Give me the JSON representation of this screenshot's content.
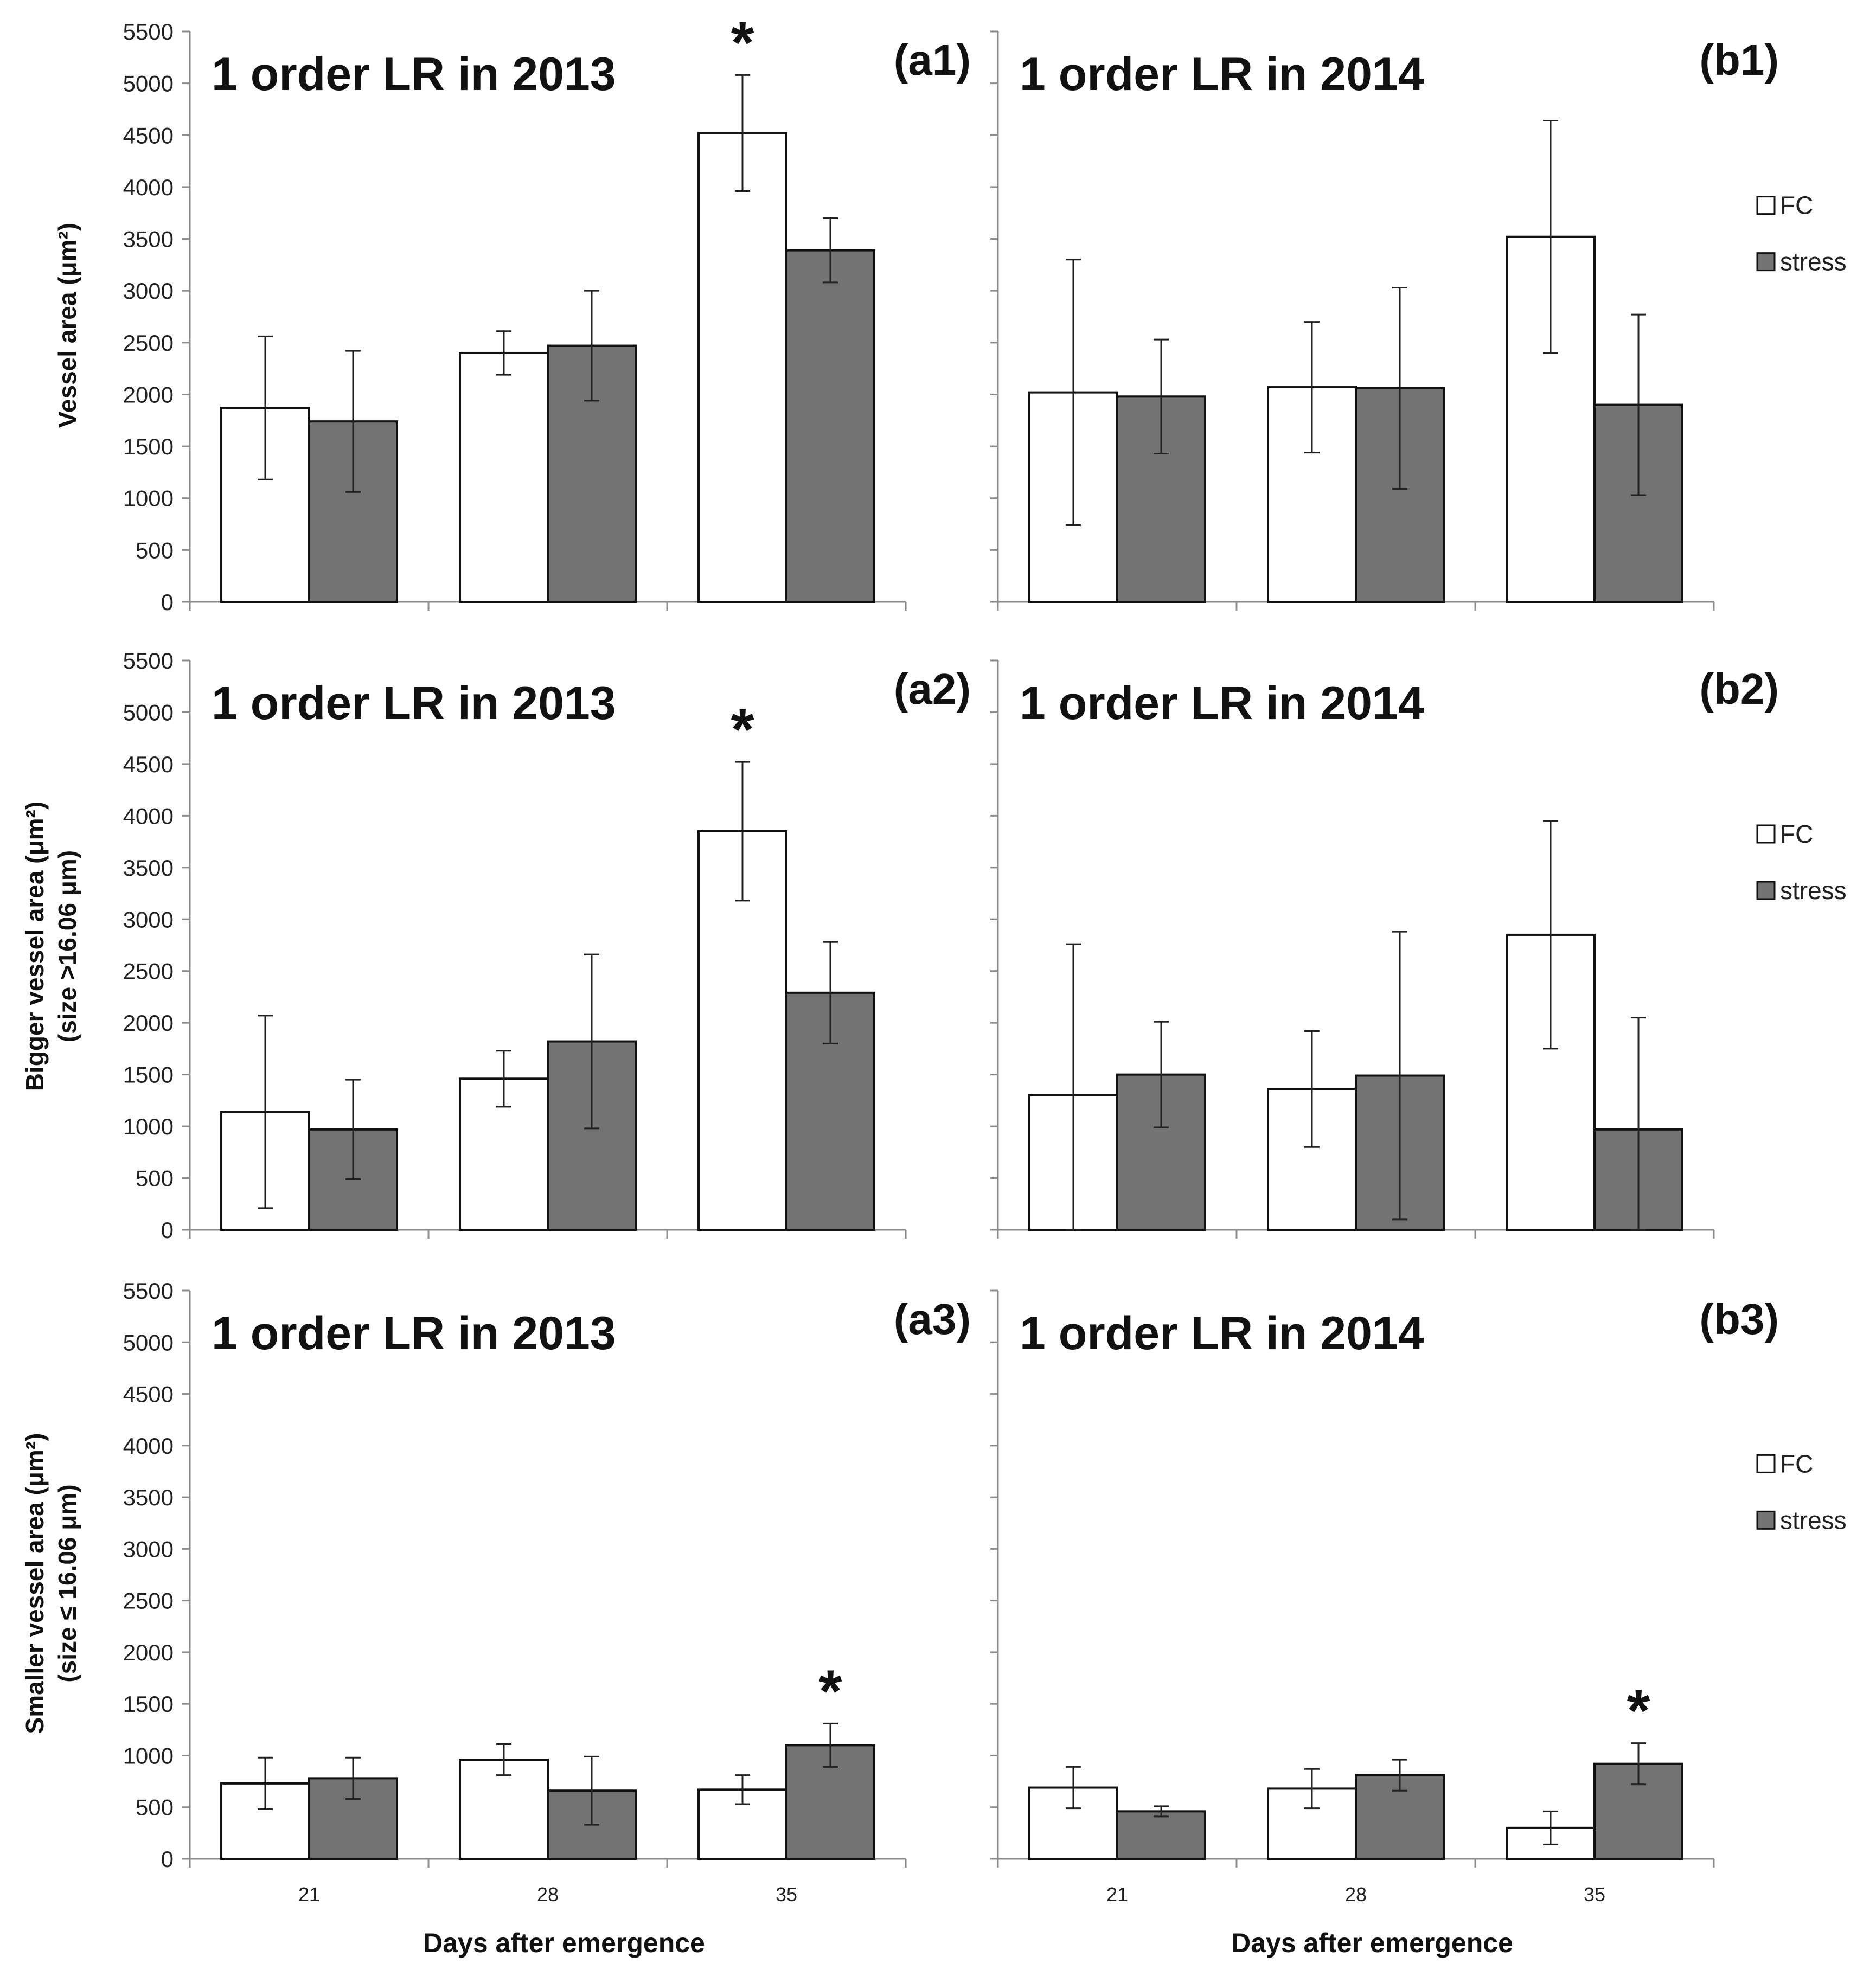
{
  "colors": {
    "fc": "#ffffff",
    "stress": "#737373",
    "axis": "#8c8c8c",
    "bar_stroke": "#111111"
  },
  "ylabel_top": "Vessel area (μm²)",
  "ylabel_mid": [
    "Bigger vessel area (μm²)",
    "(size >16.06 μm)"
  ],
  "ylabel_bot": [
    "Smaller vessel area (μm²)",
    "(size ≤ 16.06 μm)"
  ],
  "xlabel": "Days after emergence",
  "chart_data": [
    {
      "id": "a1",
      "type": "bar",
      "title": "1 order LR in 2013",
      "tag": "(a1)",
      "categories": [
        "21",
        "28",
        "35"
      ],
      "ylim": [
        0,
        5500
      ],
      "yticks": [
        0,
        500,
        1000,
        1500,
        2000,
        2500,
        3000,
        3500,
        4000,
        4500,
        5000,
        5500
      ],
      "series": [
        {
          "name": "FC",
          "values": [
            1870,
            2400,
            4520
          ],
          "errors": [
            690,
            210,
            560
          ]
        },
        {
          "name": "stress",
          "values": [
            1740,
            2470,
            3390
          ],
          "errors": [
            680,
            530,
            310
          ]
        }
      ],
      "significance": [
        {
          "category": "35",
          "series": "FC",
          "label": "*"
        }
      ],
      "legend": false
    },
    {
      "id": "b1",
      "type": "bar",
      "title": "1 order LR in 2014",
      "tag": "(b1)",
      "categories": [
        "21",
        "28",
        "35"
      ],
      "ylim": [
        0,
        5500
      ],
      "yticks": [
        0,
        500,
        1000,
        1500,
        2000,
        2500,
        3000,
        3500,
        4000,
        4500,
        5000,
        5500
      ],
      "series": [
        {
          "name": "FC",
          "values": [
            2020,
            2070,
            3520
          ],
          "errors": [
            1280,
            630,
            1120
          ]
        },
        {
          "name": "stress",
          "values": [
            1980,
            2060,
            1900
          ],
          "errors": [
            550,
            970,
            870
          ]
        }
      ],
      "significance": [],
      "legend": true
    },
    {
      "id": "a2",
      "type": "bar",
      "title": "1 order LR in 2013",
      "tag": "(a2)",
      "categories": [
        "21",
        "28",
        "35"
      ],
      "ylim": [
        0,
        5500
      ],
      "yticks": [
        0,
        500,
        1000,
        1500,
        2000,
        2500,
        3000,
        3500,
        4000,
        4500,
        5000,
        5500
      ],
      "series": [
        {
          "name": "FC",
          "values": [
            1140,
            1460,
            3850
          ],
          "errors": [
            930,
            270,
            670
          ]
        },
        {
          "name": "stress",
          "values": [
            970,
            1820,
            2290
          ],
          "errors": [
            480,
            840,
            490
          ]
        }
      ],
      "significance": [
        {
          "category": "35",
          "series": "FC",
          "label": "*"
        }
      ],
      "legend": false
    },
    {
      "id": "b2",
      "type": "bar",
      "title": "1 order LR in 2014",
      "tag": "(b2)",
      "categories": [
        "21",
        "28",
        "35"
      ],
      "ylim": [
        0,
        5500
      ],
      "yticks": [
        0,
        500,
        1000,
        1500,
        2000,
        2500,
        3000,
        3500,
        4000,
        4500,
        5000,
        5500
      ],
      "series": [
        {
          "name": "FC",
          "values": [
            1300,
            1360,
            2850
          ],
          "errors": [
            1460,
            560,
            1100
          ]
        },
        {
          "name": "stress",
          "values": [
            1500,
            1490,
            970
          ],
          "errors": [
            510,
            1390,
            1080
          ]
        }
      ],
      "significance": [],
      "legend": true
    },
    {
      "id": "a3",
      "type": "bar",
      "title": "1 order LR in 2013",
      "tag": "(a3)",
      "categories": [
        "21",
        "28",
        "35"
      ],
      "ylim": [
        0,
        5500
      ],
      "yticks": [
        0,
        500,
        1000,
        1500,
        2000,
        2500,
        3000,
        3500,
        4000,
        4500,
        5000,
        5500
      ],
      "series": [
        {
          "name": "FC",
          "values": [
            730,
            960,
            670
          ],
          "errors": [
            250,
            150,
            140
          ]
        },
        {
          "name": "stress",
          "values": [
            780,
            660,
            1100
          ],
          "errors": [
            200,
            330,
            210
          ]
        }
      ],
      "significance": [
        {
          "category": "35",
          "series": "stress",
          "label": "*"
        }
      ],
      "legend": false
    },
    {
      "id": "b3",
      "type": "bar",
      "title": "1 order LR in 2014",
      "tag": "(b3)",
      "categories": [
        "21",
        "28",
        "35"
      ],
      "ylim": [
        0,
        5500
      ],
      "yticks": [
        0,
        500,
        1000,
        1500,
        2000,
        2500,
        3000,
        3500,
        4000,
        4500,
        5000,
        5500
      ],
      "series": [
        {
          "name": "FC",
          "values": [
            690,
            680,
            300
          ],
          "errors": [
            200,
            190,
            160
          ]
        },
        {
          "name": "stress",
          "values": [
            460,
            810,
            920
          ],
          "errors": [
            50,
            150,
            200
          ]
        }
      ],
      "significance": [
        {
          "category": "35",
          "series": "stress",
          "label": "*"
        }
      ],
      "legend": true
    }
  ]
}
